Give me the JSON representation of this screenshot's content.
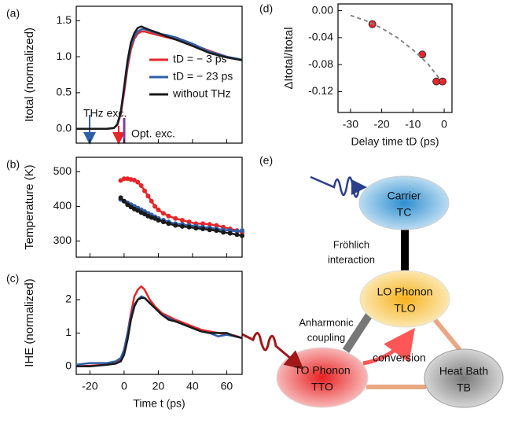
{
  "chart_data": [
    {
      "type": "line",
      "label": "(a)",
      "ylabel": "Itotal (normalized)",
      "x": [
        -28,
        -20,
        -15,
        -10,
        -6,
        -4,
        -2,
        0,
        2,
        4,
        6,
        8,
        10,
        12,
        15,
        20,
        25,
        30,
        40,
        50,
        60,
        69
      ],
      "series": [
        {
          "name": "tD = − 3 ps",
          "color": "#e8262a",
          "values": [
            0,
            0,
            0,
            0,
            0.01,
            0.05,
            0.2,
            0.5,
            0.85,
            1.1,
            1.25,
            1.32,
            1.35,
            1.35,
            1.33,
            1.3,
            1.27,
            1.24,
            1.17,
            1.08,
            1.0,
            0.95
          ]
        },
        {
          "name": "tD = − 23 ps",
          "color": "#2f5fa8",
          "values": [
            0,
            0,
            0,
            0,
            0.01,
            0.06,
            0.22,
            0.55,
            0.9,
            1.15,
            1.28,
            1.35,
            1.38,
            1.38,
            1.36,
            1.32,
            1.3,
            1.27,
            1.18,
            1.07,
            1.0,
            0.96
          ]
        },
        {
          "name": "without THz",
          "color": "#1a1a1a",
          "values": [
            0,
            0,
            0,
            0,
            0.01,
            0.06,
            0.23,
            0.58,
            0.95,
            1.2,
            1.33,
            1.4,
            1.42,
            1.4,
            1.37,
            1.33,
            1.28,
            1.24,
            1.15,
            1.05,
            0.99,
            0.95
          ]
        }
      ],
      "annotations": [
        "THz exc.",
        "Opt. exc."
      ],
      "xlim": [
        -28,
        69
      ],
      "ylim": [
        -0.2,
        1.7
      ],
      "yticks": [
        {
          "value": 0,
          "label": "0.0"
        },
        {
          "value": 0.5,
          "label": "0.5"
        },
        {
          "value": 1,
          "label": "1.0"
        },
        {
          "value": 1.5,
          "label": "1.5"
        }
      ]
    },
    {
      "type": "line",
      "label": "(b)",
      "ylabel": "Temperature (K)",
      "markers": true,
      "x": [
        -2,
        0,
        2,
        4,
        6,
        8,
        10,
        12,
        14,
        16,
        18,
        20,
        23,
        26,
        30,
        34,
        38,
        42,
        46,
        50,
        54,
        58,
        62,
        66,
        69
      ],
      "series": [
        {
          "color": "#e8262a",
          "values": [
            475,
            480,
            480,
            478,
            476,
            470,
            460,
            445,
            430,
            415,
            400,
            390,
            380,
            372,
            365,
            360,
            355,
            350,
            350,
            348,
            345,
            340,
            335,
            330,
            325
          ]
        },
        {
          "color": "#2f5fa8",
          "values": [
            420,
            415,
            410,
            405,
            400,
            395,
            390,
            385,
            380,
            375,
            370,
            365,
            360,
            355,
            350,
            348,
            345,
            343,
            340,
            338,
            335,
            332,
            330,
            328,
            330
          ]
        },
        {
          "color": "#1a1a1a",
          "values": [
            425,
            415,
            405,
            398,
            392,
            388,
            382,
            378,
            372,
            368,
            365,
            360,
            355,
            350,
            345,
            342,
            340,
            337,
            335,
            332,
            330,
            325,
            322,
            318,
            315
          ]
        }
      ],
      "xlim": [
        -28,
        69
      ],
      "ylim": [
        253,
        542
      ],
      "yticks": [
        300,
        400,
        500
      ]
    },
    {
      "type": "line",
      "label": "(c)",
      "ylabel": "IHE (normalized)",
      "xlabel": "Time t (ps)",
      "x": [
        -28,
        -20,
        -10,
        -5,
        -2,
        0,
        2,
        4,
        6,
        8,
        10,
        12,
        15,
        18,
        22,
        26,
        30,
        35,
        40,
        45,
        50,
        55,
        60,
        65,
        69
      ],
      "series": [
        {
          "color": "#e8262a",
          "values": [
            0,
            0.02,
            0.05,
            0.1,
            0.2,
            0.5,
            1.0,
            1.6,
            2.1,
            2.3,
            2.4,
            2.3,
            2.0,
            1.8,
            1.6,
            1.5,
            1.4,
            1.3,
            1.2,
            1.1,
            1.05,
            1.0,
            0.95,
            0.92,
            0.85
          ]
        },
        {
          "color": "#2f5fa8",
          "values": [
            0.05,
            0.1,
            0.1,
            0.15,
            0.25,
            0.5,
            1.0,
            1.5,
            1.85,
            2.0,
            2.1,
            2.05,
            1.9,
            1.75,
            1.55,
            1.45,
            1.35,
            1.25,
            1.15,
            1.05,
            1.0,
            0.9,
            0.95,
            0.9,
            0.85
          ]
        },
        {
          "color": "#1a1a1a",
          "values": [
            0,
            0,
            0.05,
            0.08,
            0.15,
            0.35,
            0.8,
            1.4,
            1.8,
            2.0,
            2.05,
            2.05,
            1.9,
            1.75,
            1.55,
            1.4,
            1.35,
            1.25,
            1.15,
            1.05,
            1.0,
            1.0,
            1.0,
            0.9,
            0.85
          ]
        }
      ],
      "xlim": [
        -28,
        69
      ],
      "ylim": [
        -0.24,
        2.85
      ],
      "xticks": [
        -20,
        0,
        20,
        40,
        60
      ],
      "yticks": [
        0,
        1,
        2
      ]
    },
    {
      "type": "scatter",
      "label": "(d)",
      "ylabel": "ΔItotal/Itotal",
      "xlabel": "Delay time tD (ps)",
      "series": [
        {
          "color": "#e8262a",
          "x": [
            -23,
            -7,
            -2.5,
            -0.5
          ],
          "values": [
            -0.02,
            -0.065,
            -0.105,
            -0.105
          ]
        },
        {
          "color": "#888888",
          "dash": true,
          "x": [
            -30,
            -25,
            -20,
            -15,
            -10,
            -5,
            -1
          ],
          "values": [
            -0.007,
            -0.015,
            -0.026,
            -0.04,
            -0.058,
            -0.08,
            -0.104
          ]
        }
      ],
      "xlim": [
        -34,
        2.5
      ],
      "ylim": [
        -0.151,
        0.01
      ],
      "xticks": [
        -30,
        -20,
        -10,
        0
      ],
      "yticks": [
        {
          "value": 0,
          "label": "0.00"
        },
        {
          "value": -0.04,
          "label": "-0.04"
        },
        {
          "value": -0.08,
          "label": "-0.08"
        },
        {
          "value": -0.12,
          "label": "-0.12"
        }
      ]
    }
  ],
  "diagram": {
    "label": "(e)",
    "nodes": [
      {
        "name": "Carrier",
        "temp": "TC"
      },
      {
        "name": "LO Phonon",
        "temp": "TLO"
      },
      {
        "name": "TO Phonon",
        "temp": "TTO"
      },
      {
        "name": "Heat Bath",
        "temp": "TB"
      }
    ],
    "edges": [
      {
        "lines": [
          "Fröhlich",
          "interaction"
        ]
      },
      {
        "lines": [
          "Anharmonic",
          "coupling"
        ]
      },
      {
        "lines": [
          "conversion"
        ]
      }
    ]
  }
}
